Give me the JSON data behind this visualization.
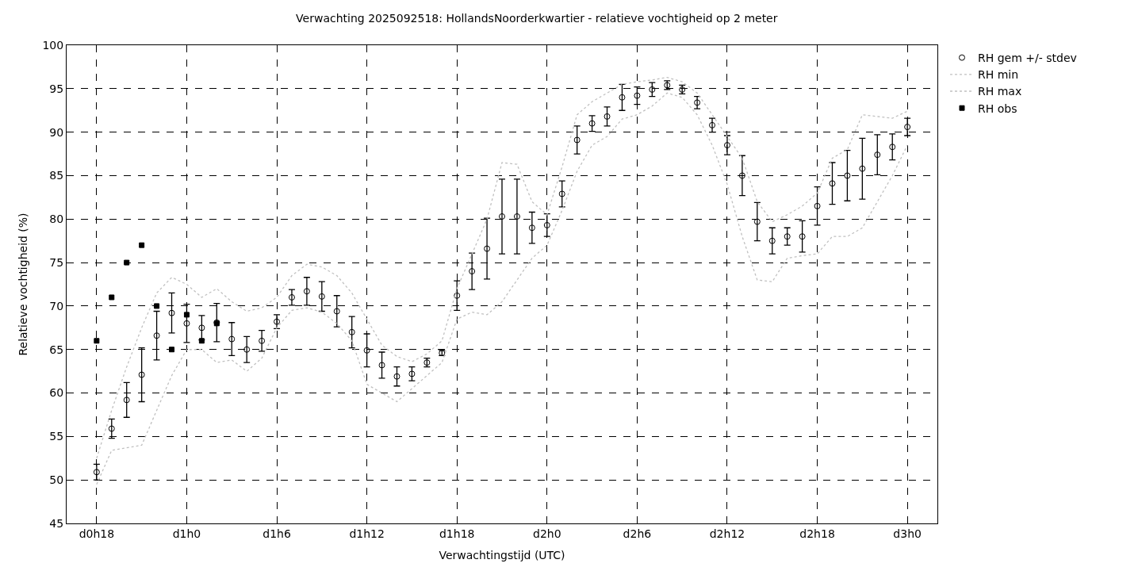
{
  "chart_data": {
    "type": "scatter",
    "title": "Verwachting 2025092518: HollandsNoorderkwartier - relatieve vochtigheid op 2 meter",
    "xlabel": "Verwachtingstijd (UTC)",
    "ylabel": "Relatieve vochtigheid (%)",
    "categories": [
      "d0h18",
      null,
      null,
      null,
      null,
      null,
      "d1h0",
      null,
      null,
      null,
      null,
      null,
      "d1h6",
      null,
      null,
      null,
      null,
      null,
      "d1h12",
      null,
      null,
      null,
      null,
      null,
      "d1h18",
      null,
      null,
      null,
      null,
      null,
      "d2h0",
      null,
      null,
      null,
      null,
      null,
      "d2h6",
      null,
      null,
      null,
      null,
      null,
      "d2h12",
      null,
      null,
      null,
      null,
      null,
      "d2h18",
      null,
      null,
      null,
      null,
      null,
      "d3h0"
    ],
    "series": [
      {
        "name": "RH gem +/- stdev",
        "color": "#000000",
        "marker": "circle",
        "values": [
          50.9,
          55.9,
          59.2,
          62.1,
          66.6,
          69.2,
          68.0,
          67.5,
          68.1,
          66.2,
          65.0,
          66.0,
          68.2,
          71.0,
          71.7,
          71.1,
          69.4,
          67.0,
          64.9,
          63.2,
          61.9,
          62.2,
          63.5,
          64.6,
          71.2,
          74.0,
          76.6,
          80.3,
          80.3,
          79.0,
          79.3,
          82.9,
          89.1,
          91.0,
          91.8,
          94.0,
          94.2,
          94.9,
          95.4,
          94.9,
          93.4,
          90.8,
          88.5,
          85.0,
          79.7,
          77.5,
          78.0,
          78.0,
          81.5,
          84.1,
          85.0,
          85.8,
          87.4,
          88.3,
          90.6
        ],
        "errors": [
          0.9,
          1.1,
          2,
          3.1,
          2.8,
          2.3,
          2.2,
          1.4,
          2.2,
          1.9,
          1.5,
          1.2,
          0.8,
          0.9,
          1.6,
          1.7,
          1.8,
          1.8,
          1.9,
          1.5,
          1.1,
          0.8,
          0.5,
          0.3,
          1.7,
          2.1,
          3.5,
          4.3,
          4.3,
          1.8,
          1.3,
          1.5,
          1.6,
          0.9,
          1.1,
          1.5,
          1.0,
          0.8,
          0.5,
          0.5,
          0.7,
          0.8,
          1.1,
          2.3,
          2.2,
          1.5,
          1.0,
          1.8,
          2.2,
          2.4,
          2.9,
          3.5,
          2.3,
          1.5,
          1.0
        ]
      },
      {
        "name": "RH min",
        "type": "line",
        "color": "#c0c0c0",
        "line_style": "dotted",
        "marker": "none",
        "values": [
          49.5,
          53.4,
          53.7,
          54,
          58,
          62,
          65,
          65,
          63.5,
          63.8,
          62.5,
          64,
          67.5,
          69.5,
          69.8,
          69.3,
          68,
          66,
          61,
          60,
          59,
          60.5,
          62,
          63.5,
          68.5,
          69.3,
          69,
          70.5,
          73,
          75.5,
          77,
          81,
          85.5,
          88.5,
          89.5,
          91.5,
          92,
          93,
          94.5,
          94,
          92,
          88.5,
          84,
          78,
          73,
          72.8,
          75.5,
          75.8,
          76,
          78,
          78,
          79,
          82,
          85,
          88.5
        ]
      },
      {
        "name": "RH max",
        "type": "line",
        "color": "#c0c0c0",
        "line_style": "dotted",
        "marker": "none",
        "values": [
          52.5,
          58,
          63,
          67.5,
          71.5,
          73.3,
          72.5,
          71,
          72,
          70.5,
          69.4,
          69.8,
          71,
          73.5,
          74.8,
          74.5,
          73.5,
          71.5,
          68.5,
          65.5,
          64.2,
          63.6,
          64.5,
          66,
          72,
          76,
          80,
          86.5,
          86.3,
          82,
          80.5,
          86,
          92,
          93.5,
          94.5,
          95.5,
          95.8,
          96,
          96.3,
          95.8,
          94.5,
          92,
          89.5,
          87,
          82,
          79.7,
          80.5,
          81.5,
          83,
          87,
          88,
          92,
          91.8,
          91.6,
          92.4
        ]
      },
      {
        "name": "RH obs",
        "color": "#000000",
        "marker": "square",
        "values": [
          66,
          71,
          75,
          77,
          70,
          65,
          69,
          66,
          68,
          null,
          null,
          null,
          null,
          null,
          null,
          null,
          null,
          null,
          null,
          null,
          null,
          null,
          null,
          null,
          null,
          null,
          null,
          null,
          null,
          null,
          null,
          null,
          null,
          null,
          null,
          null,
          null,
          null,
          null,
          null,
          null,
          null,
          null,
          null,
          null,
          null,
          null,
          null,
          null,
          null,
          null,
          null,
          null,
          null,
          null
        ]
      }
    ],
    "ylim": [
      45,
      100
    ],
    "yticks": [
      45,
      50,
      55,
      60,
      65,
      70,
      75,
      80,
      85,
      90,
      95,
      100
    ],
    "grid": true,
    "legend": "top right"
  }
}
